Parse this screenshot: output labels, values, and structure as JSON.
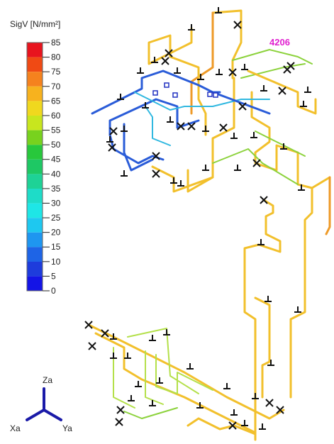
{
  "legend": {
    "title": "SigV [N/mm²]",
    "ticks": [
      85,
      80,
      75,
      70,
      65,
      60,
      55,
      50,
      45,
      40,
      35,
      30,
      25,
      20,
      15,
      10,
      5,
      0
    ]
  },
  "annotations": {
    "node": "4206"
  },
  "axes": {
    "z": "Za",
    "x": "Xa",
    "y": "Ya"
  }
}
